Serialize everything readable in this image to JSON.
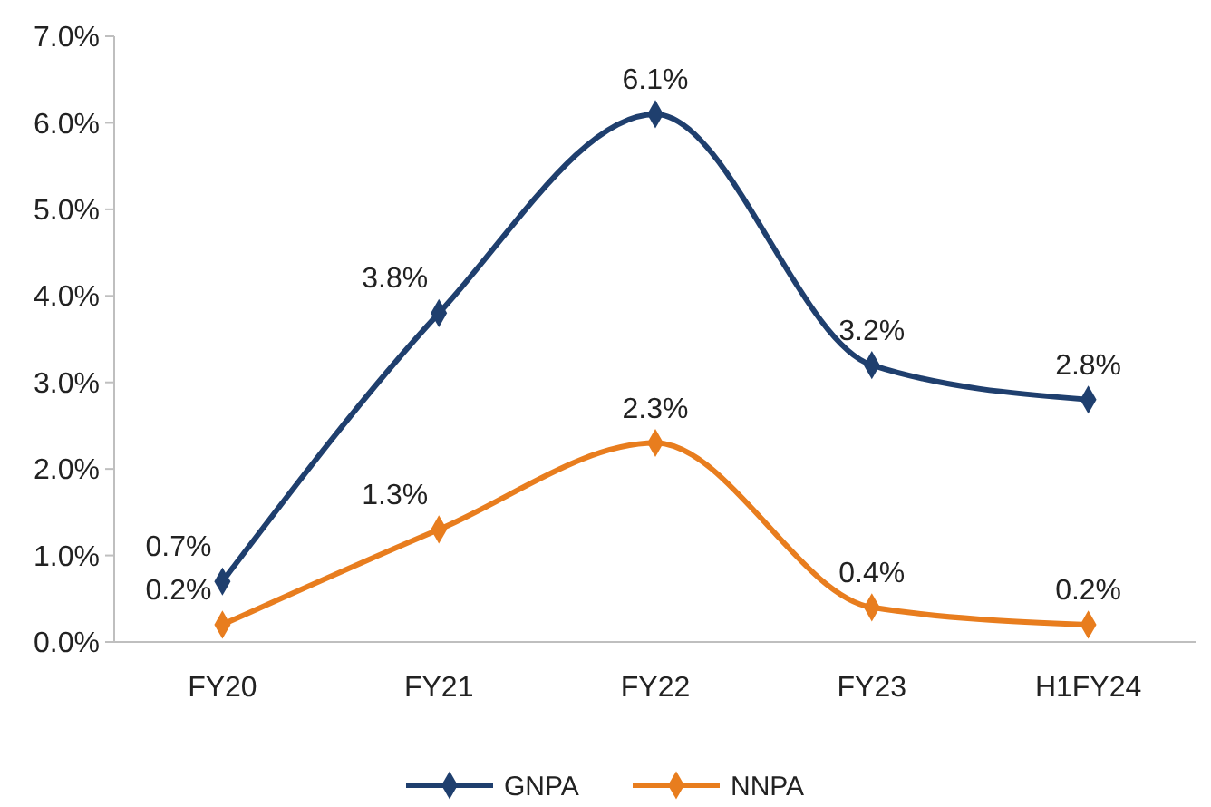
{
  "chart_data": {
    "type": "line",
    "categories": [
      "FY20",
      "FY21",
      "FY22",
      "FY23",
      "H1FY24"
    ],
    "series": [
      {
        "name": "GNPA",
        "color": "#1f3f6e",
        "values": [
          0.7,
          3.8,
          6.1,
          3.2,
          2.8
        ],
        "value_labels": [
          "0.7%",
          "3.8%",
          "6.1%",
          "3.2%",
          "2.8%"
        ]
      },
      {
        "name": "NNPA",
        "color": "#e87d1e",
        "values": [
          0.2,
          1.3,
          2.3,
          0.4,
          0.2
        ],
        "value_labels": [
          "0.2%",
          "1.3%",
          "2.3%",
          "0.4%",
          "0.2%"
        ]
      }
    ],
    "ylim": [
      0,
      7
    ],
    "yticks": [
      {
        "value": 0,
        "label": "0.0%"
      },
      {
        "value": 1,
        "label": "1.0%"
      },
      {
        "value": 2,
        "label": "2.0%"
      },
      {
        "value": 3,
        "label": "3.0%"
      },
      {
        "value": 4,
        "label": "4.0%"
      },
      {
        "value": 5,
        "label": "5.0%"
      },
      {
        "value": 6,
        "label": "6.0%"
      },
      {
        "value": 7,
        "label": "7.0%"
      }
    ],
    "grid": false,
    "legend": "bottom",
    "marker": "diamond",
    "line_style": "solid"
  }
}
